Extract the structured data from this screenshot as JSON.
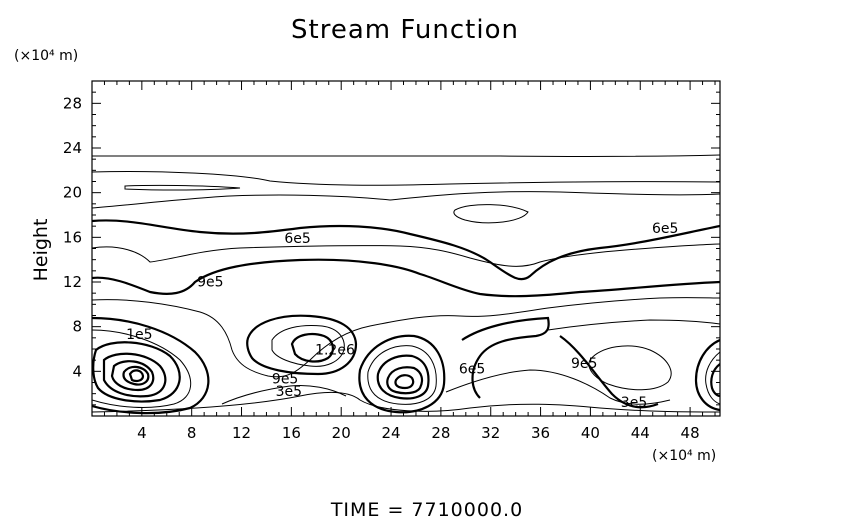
{
  "chart_data": {
    "type": "contour",
    "title": "Stream Function",
    "ylabel": "Height",
    "x_unit": "(×10⁴ m)",
    "y_unit": "(×10⁴ m)",
    "xlim": [
      0,
      50.4
    ],
    "ylim": [
      0,
      30
    ],
    "x_ticks": [
      "4",
      "8",
      "12",
      "16",
      "20",
      "24",
      "28",
      "32",
      "36",
      "40",
      "44",
      "48"
    ],
    "x_tick_values": [
      4,
      8,
      12,
      16,
      20,
      24,
      28,
      32,
      36,
      40,
      44,
      48
    ],
    "y_ticks": [
      "4",
      "8",
      "12",
      "16",
      "20",
      "24",
      "28"
    ],
    "y_tick_values": [
      4,
      8,
      12,
      16,
      20,
      24,
      28
    ],
    "contour_labels": [
      {
        "text": "6e5",
        "x": 16.5,
        "y": 15.5
      },
      {
        "text": "6e5",
        "x": 46.0,
        "y": 16.4
      },
      {
        "text": "9e5",
        "x": 9.5,
        "y": 11.6
      },
      {
        "text": "1e5",
        "x": 3.8,
        "y": 6.9
      },
      {
        "text": "9e5",
        "x": 15.5,
        "y": 2.9
      },
      {
        "text": "3e5",
        "x": 15.8,
        "y": 1.8
      },
      {
        "text": "1.2e6",
        "x": 19.5,
        "y": 5.5
      },
      {
        "text": "6e5",
        "x": 30.5,
        "y": 3.8
      },
      {
        "text": "9e5",
        "x": 39.5,
        "y": 4.3
      },
      {
        "text": "3e5",
        "x": 43.5,
        "y": 0.8
      }
    ],
    "grid": false,
    "legend": "none"
  },
  "footer": {
    "time_label": "TIME  =  7710000.0"
  }
}
